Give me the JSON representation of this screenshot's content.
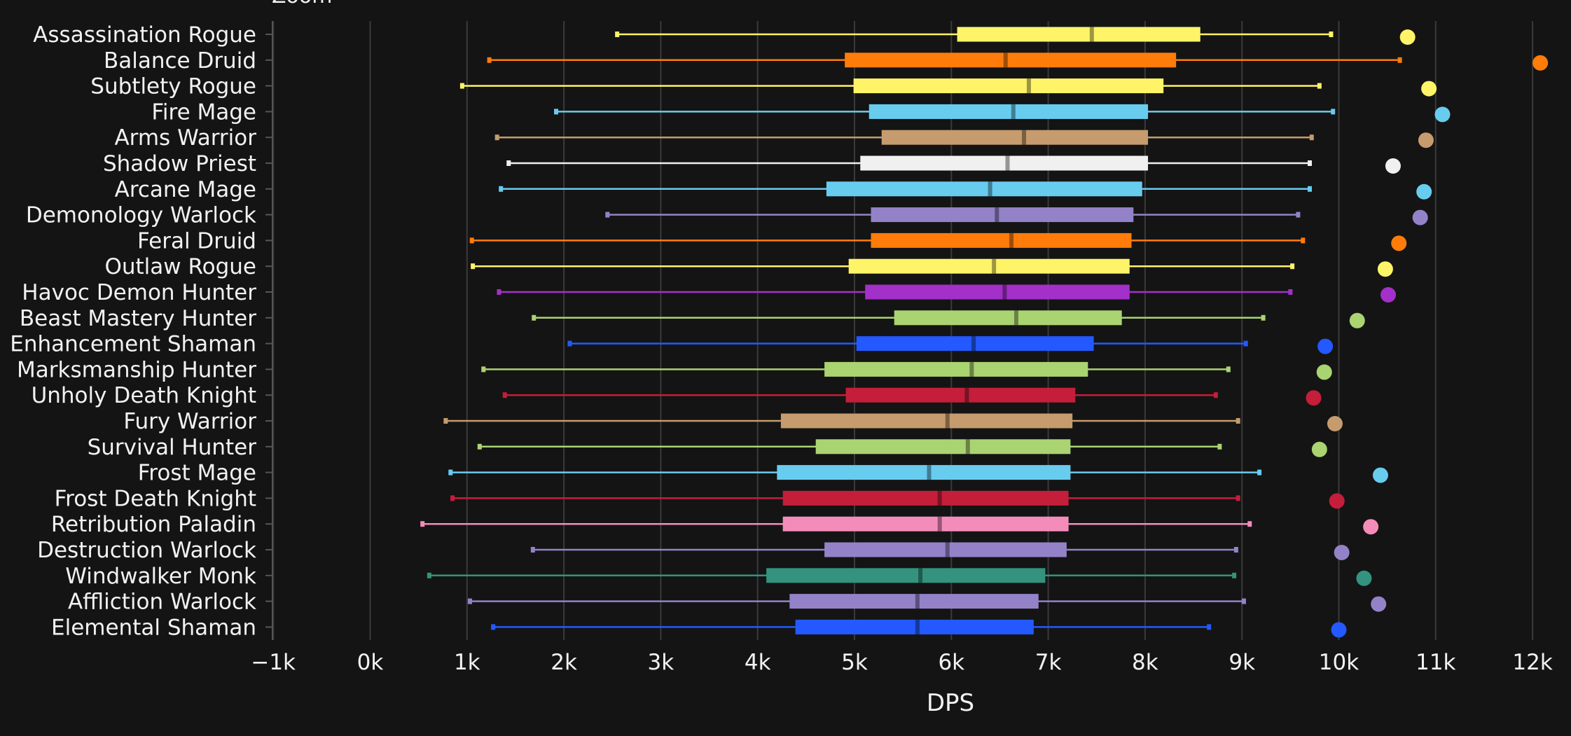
{
  "zoom_label": "Zoom",
  "chart_data": {
    "type": "box",
    "orientation": "horizontal",
    "xlabel": "DPS",
    "xlim": [
      -1000,
      12400
    ],
    "xticks": [
      -1000,
      0,
      1000,
      2000,
      3000,
      4000,
      5000,
      6000,
      7000,
      8000,
      9000,
      10000,
      11000,
      12000
    ],
    "xtick_labels": [
      "−1k",
      "0k",
      "1k",
      "2k",
      "3k",
      "4k",
      "5k",
      "6k",
      "7k",
      "8k",
      "9k",
      "10k",
      "11k",
      "12k"
    ],
    "grid": true,
    "series": [
      {
        "name": "Assassination Rogue",
        "color": "#FFF468",
        "min": 2550,
        "q1": 6060,
        "median": 7450,
        "q3": 8570,
        "max": 9920,
        "outlier": 10710
      },
      {
        "name": "Balance Druid",
        "color": "#FF7C0A",
        "min": 1230,
        "q1": 4900,
        "median": 6560,
        "q3": 8320,
        "max": 10630,
        "outlier": 12080
      },
      {
        "name": "Subtlety Rogue",
        "color": "#FFF468",
        "min": 950,
        "q1": 4990,
        "median": 6800,
        "q3": 8190,
        "max": 9800,
        "outlier": 10930
      },
      {
        "name": "Fire Mage",
        "color": "#68CCEF",
        "min": 1920,
        "q1": 5150,
        "median": 6640,
        "q3": 8030,
        "max": 9940,
        "outlier": 11070
      },
      {
        "name": "Arms Warrior",
        "color": "#C69B6D",
        "min": 1310,
        "q1": 5280,
        "median": 6750,
        "q3": 8030,
        "max": 9720,
        "outlier": 10900
      },
      {
        "name": "Shadow Priest",
        "color": "#F0F0F0",
        "min": 1430,
        "q1": 5060,
        "median": 6580,
        "q3": 8030,
        "max": 9700,
        "outlier": 10560
      },
      {
        "name": "Arcane Mage",
        "color": "#68CCEF",
        "min": 1350,
        "q1": 4710,
        "median": 6400,
        "q3": 7970,
        "max": 9700,
        "outlier": 10880
      },
      {
        "name": "Demonology Warlock",
        "color": "#9482C9",
        "min": 2450,
        "q1": 5170,
        "median": 6470,
        "q3": 7880,
        "max": 9580,
        "outlier": 10840
      },
      {
        "name": "Feral Druid",
        "color": "#FF7C0A",
        "min": 1050,
        "q1": 5170,
        "median": 6620,
        "q3": 7860,
        "max": 9630,
        "outlier": 10620
      },
      {
        "name": "Outlaw Rogue",
        "color": "#FFF468",
        "min": 1060,
        "q1": 4940,
        "median": 6440,
        "q3": 7840,
        "max": 9520,
        "outlier": 10480
      },
      {
        "name": "Havoc Demon Hunter",
        "color": "#A330C9",
        "min": 1330,
        "q1": 5110,
        "median": 6550,
        "q3": 7840,
        "max": 9500,
        "outlier": 10510
      },
      {
        "name": "Beast Mastery Hunter",
        "color": "#AAD372",
        "min": 1690,
        "q1": 5410,
        "median": 6670,
        "q3": 7760,
        "max": 9220,
        "outlier": 10190
      },
      {
        "name": "Enhancement Shaman",
        "color": "#2359FF",
        "min": 2060,
        "q1": 5020,
        "median": 6230,
        "q3": 7470,
        "max": 9040,
        "outlier": 9860
      },
      {
        "name": "Marksmanship Hunter",
        "color": "#AAD372",
        "min": 1170,
        "q1": 4690,
        "median": 6210,
        "q3": 7410,
        "max": 8860,
        "outlier": 9850
      },
      {
        "name": "Unholy Death Knight",
        "color": "#C41E3A",
        "min": 1390,
        "q1": 4910,
        "median": 6160,
        "q3": 7280,
        "max": 8730,
        "outlier": 9740
      },
      {
        "name": "Fury Warrior",
        "color": "#C69B6D",
        "min": 780,
        "q1": 4240,
        "median": 5960,
        "q3": 7250,
        "max": 8960,
        "outlier": 9960
      },
      {
        "name": "Survival Hunter",
        "color": "#AAD372",
        "min": 1130,
        "q1": 4600,
        "median": 6170,
        "q3": 7230,
        "max": 8770,
        "outlier": 9800
      },
      {
        "name": "Frost Mage",
        "color": "#68CCEF",
        "min": 830,
        "q1": 4200,
        "median": 5770,
        "q3": 7230,
        "max": 9180,
        "outlier": 10430
      },
      {
        "name": "Frost Death Knight",
        "color": "#C41E3A",
        "min": 850,
        "q1": 4260,
        "median": 5880,
        "q3": 7210,
        "max": 8960,
        "outlier": 9980
      },
      {
        "name": "Retribution Paladin",
        "color": "#F48CBA",
        "min": 540,
        "q1": 4260,
        "median": 5880,
        "q3": 7210,
        "max": 9080,
        "outlier": 10330
      },
      {
        "name": "Destruction Warlock",
        "color": "#9482C9",
        "min": 1680,
        "q1": 4690,
        "median": 5960,
        "q3": 7190,
        "max": 8940,
        "outlier": 10030
      },
      {
        "name": "Windwalker Monk",
        "color": "#33937F",
        "min": 610,
        "q1": 4090,
        "median": 5680,
        "q3": 6970,
        "max": 8920,
        "outlier": 10260
      },
      {
        "name": "Affliction Warlock",
        "color": "#9482C9",
        "min": 1030,
        "q1": 4330,
        "median": 5650,
        "q3": 6900,
        "max": 9020,
        "outlier": 10410
      },
      {
        "name": "Elemental Shaman",
        "color": "#2359FF",
        "min": 1270,
        "q1": 4390,
        "median": 5650,
        "q3": 6850,
        "max": 8660,
        "outlier": 10000
      }
    ]
  }
}
